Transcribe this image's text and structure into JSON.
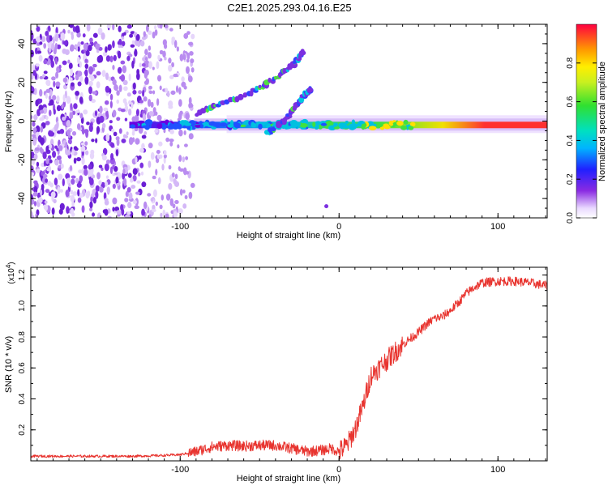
{
  "title": "C2E1.2025.293.04.16.E25",
  "colors": {
    "snr_line": "#e8342f",
    "axis": "#000000",
    "ridge_low": "#8a2be2",
    "scatter": "#7b2fe0"
  },
  "chart_data": [
    {
      "type": "heatmap",
      "title": "C2E1.2025.293.04.16.E25",
      "xlabel": "Height of straight line (km)",
      "ylabel": "Frequency (Hz)",
      "xlim": [
        -194,
        131
      ],
      "ylim": [
        -50,
        50
      ],
      "x_ticks": [
        -100,
        0,
        100
      ],
      "x_tick_labels": [
        "-100",
        "0",
        "100"
      ],
      "y_ticks": [
        -40,
        -20,
        0,
        20,
        40
      ],
      "y_tick_labels": [
        "-40",
        "-20",
        "0",
        "20",
        "40"
      ],
      "colorbar": {
        "label": "Normalized spectral amplitude",
        "range": [
          0.0,
          1.0
        ],
        "ticks": [
          0.0,
          0.2,
          0.4,
          0.6,
          0.8
        ],
        "tick_labels": [
          "0.0",
          "0.2",
          "0.4",
          "0.6",
          "0.8"
        ]
      },
      "features": {
        "noise_region_x": [
          -194,
          -92
        ],
        "main_ridge": {
          "x": [
            -132,
            131
          ],
          "freq": -2
        },
        "upper_branch": [
          [
            -90,
            4
          ],
          [
            -70,
            10
          ],
          [
            -50,
            17
          ],
          [
            -38,
            23
          ],
          [
            -28,
            30
          ],
          [
            -22,
            36
          ]
        ],
        "secondary_branch": [
          [
            -45,
            -6
          ],
          [
            -35,
            0
          ],
          [
            -28,
            7
          ],
          [
            -22,
            13
          ],
          [
            -18,
            17
          ]
        ],
        "outlier": [
          -8,
          -44
        ]
      }
    },
    {
      "type": "line",
      "xlabel": "Height of straight line (km)",
      "ylabel": "SNR (10 * v/v)",
      "y_multiplier_label": "(x10",
      "y_multiplier_exp": "4",
      "y_multiplier_close": ")",
      "xlim": [
        -194,
        131
      ],
      "ylim": [
        0.0,
        1.25
      ],
      "x_ticks": [
        -100,
        0,
        100
      ],
      "x_tick_labels": [
        "-100",
        "0",
        "100"
      ],
      "y_ticks": [
        0.2,
        0.4,
        0.6,
        0.8,
        1.0,
        1.2
      ],
      "y_tick_labels": [
        "0.2",
        "0.4",
        "0.6",
        "0.8",
        "1.0",
        "1.2"
      ],
      "series": [
        {
          "name": "SNR",
          "x": [
            -194,
            -160,
            -130,
            -110,
            -100,
            -90,
            -80,
            -70,
            -60,
            -50,
            -40,
            -30,
            -20,
            -10,
            -5,
            0,
            5,
            10,
            15,
            20,
            25,
            30,
            35,
            40,
            50,
            55,
            60,
            65,
            70,
            75,
            80,
            85,
            90,
            100,
            110,
            120,
            131
          ],
          "y": [
            0.03,
            0.03,
            0.03,
            0.035,
            0.04,
            0.06,
            0.09,
            0.1,
            0.095,
            0.1,
            0.1,
            0.08,
            0.06,
            0.07,
            0.08,
            0.06,
            0.1,
            0.2,
            0.35,
            0.55,
            0.6,
            0.65,
            0.7,
            0.75,
            0.83,
            0.88,
            0.92,
            0.93,
            0.97,
            1.02,
            1.08,
            1.12,
            1.15,
            1.16,
            1.16,
            1.15,
            1.13
          ]
        }
      ]
    }
  ]
}
